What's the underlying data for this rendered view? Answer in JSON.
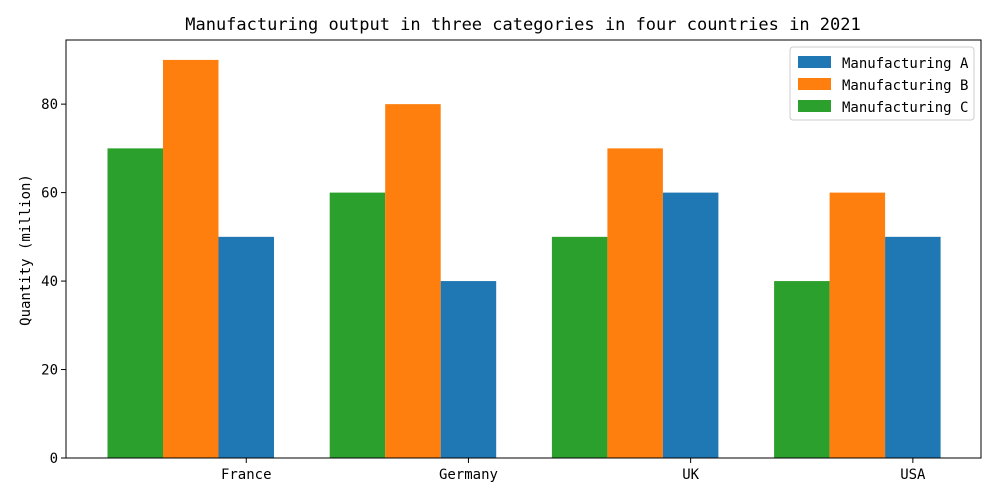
{
  "chart_data": {
    "type": "bar",
    "title": "Manufacturing output in three categories in four countries in 2021",
    "xlabel": "",
    "ylabel": "Quantity (million)",
    "categories": [
      "France",
      "Germany",
      "UK",
      "USA"
    ],
    "series": [
      {
        "name": "Manufacturing C",
        "values": [
          70,
          60,
          50,
          40
        ],
        "color": "#2ca02c"
      },
      {
        "name": "Manufacturing B",
        "values": [
          90,
          80,
          70,
          60
        ],
        "color": "#ff7f0e"
      },
      {
        "name": "Manufacturing A",
        "values": [
          50,
          40,
          60,
          50
        ],
        "color": "#1f77b4"
      }
    ],
    "legend_order": [
      "Manufacturing A",
      "Manufacturing B",
      "Manufacturing C"
    ],
    "legend_position": "top-right",
    "ylim": [
      0,
      94.5
    ],
    "yticks": [
      0,
      20,
      40,
      60,
      80
    ],
    "grid": false
  }
}
